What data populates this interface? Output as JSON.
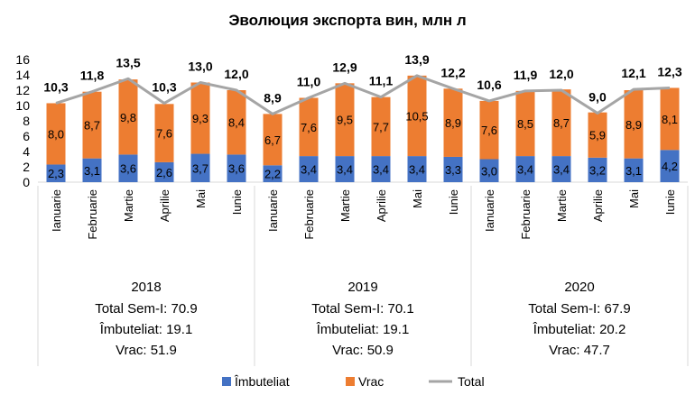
{
  "chart_data": {
    "type": "bar",
    "title": "Эволюция экспорта вин, млн л",
    "stacked": true,
    "ylim": [
      0,
      16
    ],
    "yticks": [
      0,
      2,
      4,
      6,
      8,
      10,
      12,
      14,
      16
    ],
    "grid": false,
    "legend_position": "bottom",
    "categories": [
      "Ianuarie",
      "Februarie",
      "Martie",
      "Aprilie",
      "Mai",
      "Iunie",
      "Ianuarie",
      "Februarie",
      "Martie",
      "Aprilie",
      "Mai",
      "Iunie",
      "Ianuarie",
      "Februarie",
      "Martie",
      "Aprilie",
      "Mai",
      "Iunie"
    ],
    "series": [
      {
        "name": "Îmbuteliat",
        "type": "bar",
        "color": "#4472C4",
        "values": [
          2.3,
          3.1,
          3.6,
          2.6,
          3.7,
          3.6,
          2.2,
          3.4,
          3.4,
          3.4,
          3.4,
          3.3,
          3.0,
          3.4,
          3.4,
          3.2,
          3.1,
          4.2
        ],
        "labels": [
          "2,3",
          "3,1",
          "3,6",
          "2,6",
          "3,7",
          "3,6",
          "2,2",
          "3,4",
          "3,4",
          "3,4",
          "3,4",
          "3,3",
          "3,0",
          "3,4",
          "3,4",
          "3,2",
          "3,1",
          "4,2"
        ]
      },
      {
        "name": "Vrac",
        "type": "bar",
        "color": "#ED7D31",
        "values": [
          8.0,
          8.7,
          9.8,
          7.6,
          9.3,
          8.4,
          6.7,
          7.6,
          9.5,
          7.7,
          10.5,
          8.9,
          7.6,
          8.5,
          8.7,
          5.9,
          8.9,
          8.1
        ],
        "labels": [
          "8,0",
          "8,7",
          "9,8",
          "7,6",
          "9,3",
          "8,4",
          "6,7",
          "7,6",
          "9,5",
          "7,7",
          "10,5",
          "8,9",
          "7,6",
          "8,5",
          "8,7",
          "5,9",
          "8,9",
          "8,1"
        ]
      },
      {
        "name": "Total",
        "type": "line",
        "color": "#A5A5A5",
        "values": [
          10.3,
          11.8,
          13.5,
          10.3,
          13.0,
          12.0,
          8.9,
          11.0,
          12.9,
          11.1,
          13.9,
          12.2,
          10.6,
          11.9,
          12.0,
          9.0,
          12.1,
          12.3
        ],
        "labels": [
          "10,3",
          "11,8",
          "13,5",
          "10,3",
          "13,0",
          "12,0",
          "8,9",
          "11,0",
          "12,9",
          "11,1",
          "13,9",
          "12,2",
          "10,6",
          "11,9",
          "12,0",
          "9,0",
          "12,1",
          "12,3"
        ]
      }
    ],
    "groups": [
      {
        "year": "2018",
        "lines": [
          "Total Sem-I: 70.9",
          "Îmbuteliat: 19.1",
          "Vrac: 51.9"
        ]
      },
      {
        "year": "2019",
        "lines": [
          "Total Sem-I: 70.1",
          "Îmbuteliat: 19.1",
          "Vrac: 50.9"
        ]
      },
      {
        "year": "2020",
        "lines": [
          "Total Sem-I: 67.9",
          "Îmbuteliat: 20.2",
          "Vrac: 47.7"
        ]
      }
    ]
  }
}
